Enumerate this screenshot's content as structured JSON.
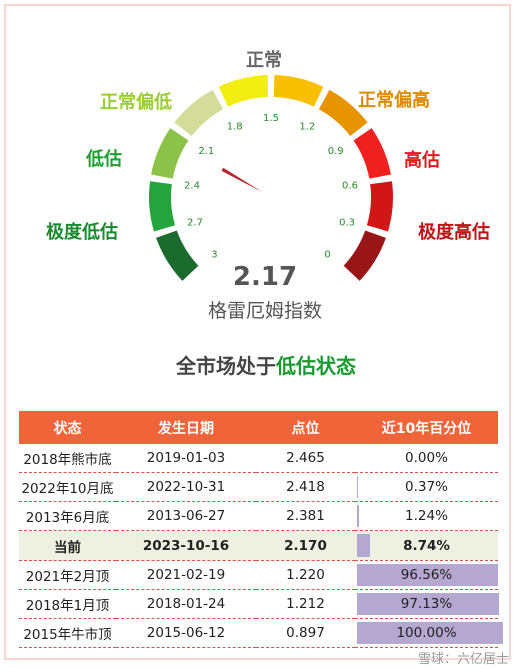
{
  "gauge": {
    "zones": [
      {
        "label": "正常",
        "color": "#666666"
      },
      {
        "label": "正常偏低",
        "color": "#9acd32"
      },
      {
        "label": "正常偏高",
        "color": "#e08a00"
      },
      {
        "label": "低估",
        "color": "#1aa130"
      },
      {
        "label": "高估",
        "color": "#e01b1b"
      },
      {
        "label": "极度低估",
        "color": "#1a8a30"
      },
      {
        "label": "极度高估",
        "color": "#c01414"
      }
    ],
    "ticks": [
      "3",
      "2.7",
      "2.4",
      "2.1",
      "1.8",
      "1.5",
      "1.2",
      "0.9",
      "0.6",
      "0.3",
      "0"
    ],
    "value_text": "2.17",
    "value_number": 2.17,
    "scale_min": 0,
    "scale_max": 3,
    "name": "格雷厄姆指数"
  },
  "status": {
    "prefix": "全市场处于",
    "highlight": "低估状态"
  },
  "table": {
    "headers": [
      "状态",
      "发生日期",
      "点位",
      "近10年百分位"
    ],
    "rows": [
      {
        "state": "2018年熊市底",
        "date": "2019-01-03",
        "point": "2.465",
        "pct_text": "0.00%",
        "pct": 0.0,
        "current": false
      },
      {
        "state": "2022年10月底",
        "date": "2022-10-31",
        "point": "2.418",
        "pct_text": "0.37%",
        "pct": 0.37,
        "current": false
      },
      {
        "state": "2013年6月底",
        "date": "2013-06-27",
        "point": "2.381",
        "pct_text": "1.24%",
        "pct": 1.24,
        "current": false
      },
      {
        "state": "当前",
        "date": "2023-10-16",
        "point": "2.170",
        "pct_text": "8.74%",
        "pct": 8.74,
        "current": true
      },
      {
        "state": "2021年2月顶",
        "date": "2021-02-19",
        "point": "1.220",
        "pct_text": "96.56%",
        "pct": 96.56,
        "current": false
      },
      {
        "state": "2018年1月顶",
        "date": "2018-01-24",
        "point": "1.212",
        "pct_text": "97.13%",
        "pct": 97.13,
        "current": false
      },
      {
        "state": "2015年牛市顶",
        "date": "2015-06-12",
        "point": "0.897",
        "pct_text": "100.00%",
        "pct": 100.0,
        "current": false
      }
    ]
  },
  "watermark": "雪球：六亿居士"
}
